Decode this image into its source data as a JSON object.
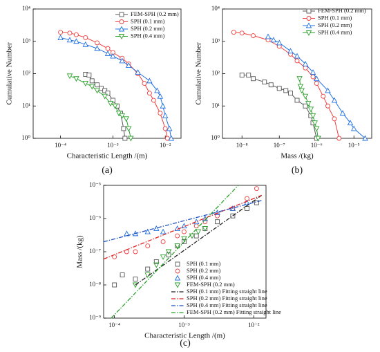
{
  "chart_data": [
    {
      "type": "line",
      "label": "(a)",
      "x_label": "Characteristic Length /(m)",
      "y_label": "Cumulative Number",
      "xscale": "log",
      "yscale": "log",
      "xlim": [
        3e-05,
        0.02
      ],
      "ylim": [
        1,
        10000
      ],
      "xticks": [
        {
          "value": 0.0001,
          "label": "10⁻⁴"
        },
        {
          "value": 0.001,
          "label": "10⁻³"
        },
        {
          "value": 0.01,
          "label": "10⁻²"
        }
      ],
      "yticks": [
        {
          "value": 1,
          "label": "10⁰"
        },
        {
          "value": 10,
          "label": "10¹"
        },
        {
          "value": 100,
          "label": "10²"
        },
        {
          "value": 1000,
          "label": "10³"
        },
        {
          "value": 10000,
          "label": "10⁴"
        }
      ],
      "legend": "top-right",
      "series": [
        {
          "name": "FEM-SPH  (0.2 mm)",
          "color": "#555555",
          "marker": "square",
          "mode": "lines+markers",
          "x": [
            0.0003,
            0.00035,
            0.0004,
            0.0005,
            0.0006,
            0.0007,
            0.0008,
            0.001,
            0.0012,
            0.0014,
            0.0016,
            0.0017
          ],
          "values": [
            95,
            90,
            60,
            45,
            35,
            30,
            25,
            15,
            10,
            6,
            2,
            1
          ]
        },
        {
          "name": "SPH  (0.1 mm)",
          "color": "#f03c3c",
          "marker": "circle",
          "mode": "lines+markers",
          "x": [
            0.0001,
            0.00015,
            0.0002,
            0.0003,
            0.0005,
            0.0008,
            0.001,
            0.0015,
            0.002,
            0.003,
            0.004,
            0.005,
            0.006,
            0.008,
            0.01,
            0.011
          ],
          "values": [
            1900,
            1800,
            1600,
            1300,
            900,
            600,
            450,
            300,
            200,
            100,
            50,
            25,
            15,
            6,
            2,
            1
          ]
        },
        {
          "name": "SPH  (0.2 mm)",
          "color": "#1f6fe0",
          "marker": "triangle-up",
          "mode": "lines+markers",
          "x": [
            0.0001,
            0.00015,
            0.0002,
            0.0003,
            0.0005,
            0.0008,
            0.001,
            0.0015,
            0.002,
            0.003,
            0.005,
            0.007,
            0.008,
            0.009,
            0.01,
            0.012,
            0.013
          ],
          "values": [
            1300,
            1100,
            1000,
            800,
            600,
            420,
            350,
            250,
            180,
            110,
            60,
            30,
            20,
            10,
            5,
            2,
            1
          ]
        },
        {
          "name": "SPH  (0.4 mm)",
          "color": "#2ca02c",
          "marker": "triangle-down",
          "mode": "lines+markers",
          "x": [
            0.00015,
            0.0002,
            0.0003,
            0.0004,
            0.0005,
            0.0007,
            0.0009,
            0.0011,
            0.0013,
            0.0015,
            0.0018,
            0.002,
            0.0022
          ],
          "values": [
            85,
            70,
            50,
            40,
            30,
            20,
            12,
            10,
            6,
            5,
            4,
            2,
            1
          ]
        }
      ]
    },
    {
      "type": "line",
      "label": "(b)",
      "x_label": "Mass /(kg)",
      "y_label": "Cumulative Number",
      "xscale": "log",
      "yscale": "log",
      "xlim": [
        3e-09,
        3e-05
      ],
      "ylim": [
        1,
        10000
      ],
      "xticks": [
        {
          "value": 1e-08,
          "label": "10⁻⁸"
        },
        {
          "value": 1e-07,
          "label": "10⁻⁷"
        },
        {
          "value": 1e-06,
          "label": "10⁻⁶"
        },
        {
          "value": 1e-05,
          "label": "10⁻⁵"
        }
      ],
      "yticks": [
        {
          "value": 1,
          "label": "10⁰"
        },
        {
          "value": 10,
          "label": "10¹"
        },
        {
          "value": 100,
          "label": "10²"
        },
        {
          "value": 1000,
          "label": "10³"
        },
        {
          "value": 10000,
          "label": "10⁴"
        }
      ],
      "legend": "top-right",
      "series": [
        {
          "name": "FEM-SPH  (0.2 mm)",
          "color": "#555555",
          "marker": "square",
          "mode": "lines+markers",
          "x": [
            1e-08,
            1.5e-08,
            2e-08,
            4e-08,
            6e-08,
            1e-07,
            1.5e-07,
            2e-07,
            3e-07,
            5e-07,
            7e-07,
            8e-07,
            1e-06
          ],
          "values": [
            90,
            90,
            70,
            55,
            45,
            35,
            30,
            25,
            15,
            10,
            5,
            3,
            1
          ]
        },
        {
          "name": "SPH  (0.1 mm)",
          "color": "#f03c3c",
          "marker": "circle",
          "mode": "lines+markers",
          "x": [
            6e-09,
            1e-08,
            2e-08,
            5e-08,
            1e-07,
            2e-07,
            3e-07,
            5e-07,
            8e-07,
            1e-06,
            1.5e-06,
            2e-06,
            3e-06,
            4e-06
          ],
          "values": [
            1900,
            1800,
            1500,
            1100,
            700,
            400,
            250,
            150,
            80,
            50,
            20,
            10,
            4,
            1
          ]
        },
        {
          "name": "SPH  (0.2 mm)",
          "color": "#1f6fe0",
          "marker": "triangle-up",
          "mode": "lines+markers",
          "x": [
            5e-08,
            7e-08,
            1e-07,
            2e-07,
            3e-07,
            5e-07,
            8e-07,
            1e-06,
            2e-06,
            3e-06,
            5e-06,
            8e-06,
            1e-05,
            2e-05
          ],
          "values": [
            1400,
            1100,
            900,
            500,
            350,
            200,
            110,
            70,
            30,
            15,
            6,
            3,
            2,
            1
          ]
        },
        {
          "name": "SPH  (0.4 mm)",
          "color": "#2ca02c",
          "marker": "triangle-down",
          "mode": "lines+markers",
          "x": [
            3.5e-07,
            3.7e-07,
            4e-07,
            5e-07,
            6e-07,
            7e-07,
            8e-07,
            9e-07,
            1e-06,
            1.1e-06
          ],
          "values": [
            70,
            40,
            30,
            20,
            12,
            8,
            5,
            3,
            2,
            1
          ]
        }
      ]
    },
    {
      "type": "scatter",
      "label": "(c)",
      "x_label": "Characteristic Length /(m)",
      "y_label": "Mass /(kg)",
      "xscale": "log",
      "yscale": "log",
      "xlim": [
        7e-05,
        0.015
      ],
      "ylim": [
        1e-09,
        1e-05
      ],
      "xticks": [
        {
          "value": 0.0001,
          "label": "10⁻⁴"
        },
        {
          "value": 0.001,
          "label": "10⁻³"
        },
        {
          "value": 0.01,
          "label": "10⁻²"
        }
      ],
      "yticks": [
        {
          "value": 1e-09,
          "label": "10⁻⁹"
        },
        {
          "value": 1e-08,
          "label": "10⁻⁸"
        },
        {
          "value": 1e-07,
          "label": "10⁻⁷"
        },
        {
          "value": 1e-06,
          "label": "10⁻⁶"
        },
        {
          "value": 1e-05,
          "label": "10⁻⁵"
        }
      ],
      "legend": "bottom-right",
      "series": [
        {
          "name": "SPH  (0.1 mm)",
          "color": "#555555",
          "marker": "square",
          "mode": "markers",
          "x": [
            0.0001,
            0.00013,
            0.0002,
            0.0003,
            0.0004,
            0.0006,
            0.0008,
            0.001,
            0.0015,
            0.002,
            0.003,
            0.005,
            0.008,
            0.011
          ],
          "values": [
            1e-08,
            2e-08,
            1.5e-08,
            3e-08,
            5e-08,
            8e-08,
            1.5e-07,
            2e-07,
            3e-07,
            5e-07,
            8e-07,
            1.2e-06,
            2e-06,
            3e-06
          ]
        },
        {
          "name": "SPH  (0.2 mm)",
          "color": "#f03c3c",
          "marker": "circle",
          "mode": "markers",
          "x": [
            0.0001,
            0.00015,
            0.0002,
            0.0003,
            0.0005,
            0.0008,
            0.001,
            0.0015,
            0.002,
            0.003,
            0.005,
            0.008,
            0.011
          ],
          "values": [
            7e-08,
            1e-07,
            1e-07,
            1.5e-07,
            2e-07,
            3e-07,
            4e-07,
            6e-07,
            8e-07,
            1.2e-06,
            2e-06,
            4e-06,
            8e-06
          ]
        },
        {
          "name": "SPH  (0.4 mm)",
          "color": "#1f6fe0",
          "marker": "triangle-up",
          "mode": "markers",
          "x": [
            0.00015,
            0.0002,
            0.0003,
            0.0004,
            0.0005,
            0.0008,
            0.001,
            0.0015,
            0.002,
            0.003,
            0.005,
            0.008
          ],
          "values": [
            3.5e-07,
            3.5e-07,
            4e-07,
            5e-07,
            4e-07,
            5e-07,
            6e-07,
            8e-07,
            1e-06,
            1.5e-06,
            2e-06,
            3e-06
          ]
        },
        {
          "name": "FEM-SPH  (0.2 mm)",
          "color": "#2ca02c",
          "marker": "triangle-down",
          "mode": "markers",
          "x": [
            0.0002,
            0.0003,
            0.0004,
            0.0005,
            0.0006,
            0.0008,
            0.001,
            0.0013,
            0.0016,
            0.002
          ],
          "values": [
            1e-08,
            2e-08,
            4e-08,
            7e-08,
            1e-07,
            1.5e-07,
            2.5e-07,
            3e-07,
            4e-07,
            5e-07
          ]
        },
        {
          "name": "SPH  (0.1 mm)  Fitting straight line",
          "color": "#222222",
          "mode": "lines",
          "x": [
            0.0002,
            0.013
          ],
          "values": [
            1e-08,
            5e-06
          ]
        },
        {
          "name": "SPH  (0.2 mm)  Fitting straight line",
          "color": "#e02020",
          "mode": "lines",
          "x": [
            7e-05,
            0.013
          ],
          "values": [
            6e-08,
            5e-06
          ]
        },
        {
          "name": "SPH  (0.4 mm)  Fitting straight line",
          "color": "#1f50c0",
          "mode": "lines",
          "x": [
            7e-05,
            0.013
          ],
          "values": [
            2e-07,
            3.5e-06
          ]
        },
        {
          "name": "FEM-SPH  (0.2 mm)  Fitting straight line",
          "color": "#2ca02c",
          "mode": "lines",
          "x": [
            9e-05,
            0.006
          ],
          "values": [
            1e-09,
            1e-05
          ]
        }
      ]
    }
  ]
}
